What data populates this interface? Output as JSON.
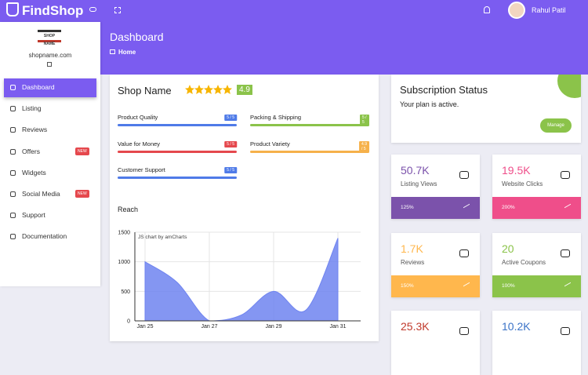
{
  "topbar": {
    "brand": "FindShop",
    "user": "Rahul Patil"
  },
  "sidebar": {
    "logo": "SHOP NAME",
    "site": "shopname.com",
    "menu": [
      {
        "label": "Dashboard"
      },
      {
        "label": "Listing"
      },
      {
        "label": "Reviews"
      },
      {
        "label": "Offers",
        "badge": "NEW"
      },
      {
        "label": "Widgets"
      },
      {
        "label": "Social Media",
        "badge": "NEW"
      },
      {
        "label": "Support"
      },
      {
        "label": "Documentation"
      }
    ]
  },
  "header": {
    "title": "Dashboard",
    "breadcrumb": "Home"
  },
  "shop": {
    "name": "Shop Name",
    "rating": "4.9",
    "scores": [
      {
        "label": "Product Quality",
        "score": "5 / 5",
        "color": "#4f7be8"
      },
      {
        "label": "Packing & Shipping",
        "score": "5 / 5",
        "color": "#8bc34a"
      },
      {
        "label": "Value for Money",
        "score": "5 / 5",
        "color": "#e5484d"
      },
      {
        "label": "Product Variety",
        "score": "4.9 / 5",
        "color": "#f6b14a"
      },
      {
        "label": "Customer Support",
        "score": "5 / 5",
        "color": "#4f7be8"
      }
    ]
  },
  "chart_data": {
    "type": "area",
    "title": "Reach",
    "credit": "JS chart by amCharts",
    "categories": [
      "Jan 25",
      null,
      "Jan 27",
      null,
      "Jan 29",
      null,
      "Jan 31"
    ],
    "values": [
      1000,
      650,
      0,
      100,
      500,
      180,
      1400
    ],
    "color": "#6f84f0",
    "ylim": [
      0,
      1500
    ],
    "yticks": [
      0,
      500,
      1000,
      1500
    ],
    "grid": true
  },
  "subscription": {
    "title": "Subscription Status",
    "status": "Your plan is active.",
    "button": "Manage"
  },
  "stats": [
    {
      "value": "50.7K",
      "label": "Listing Views",
      "change": "125%",
      "color": "#7b52ab"
    },
    {
      "value": "19.5K",
      "label": "Website Clicks",
      "change": "200%",
      "color": "#ef4e8a"
    },
    {
      "value": "1.7K",
      "label": "Reviews",
      "change": "150%",
      "color": "#ffb74d"
    },
    {
      "value": "20",
      "label": "Active Coupons",
      "change": "100%",
      "color": "#8bc34a"
    },
    {
      "value": "25.3K",
      "color": "#c0392b"
    },
    {
      "value": "10.2K",
      "color": "#3b73c7"
    }
  ]
}
